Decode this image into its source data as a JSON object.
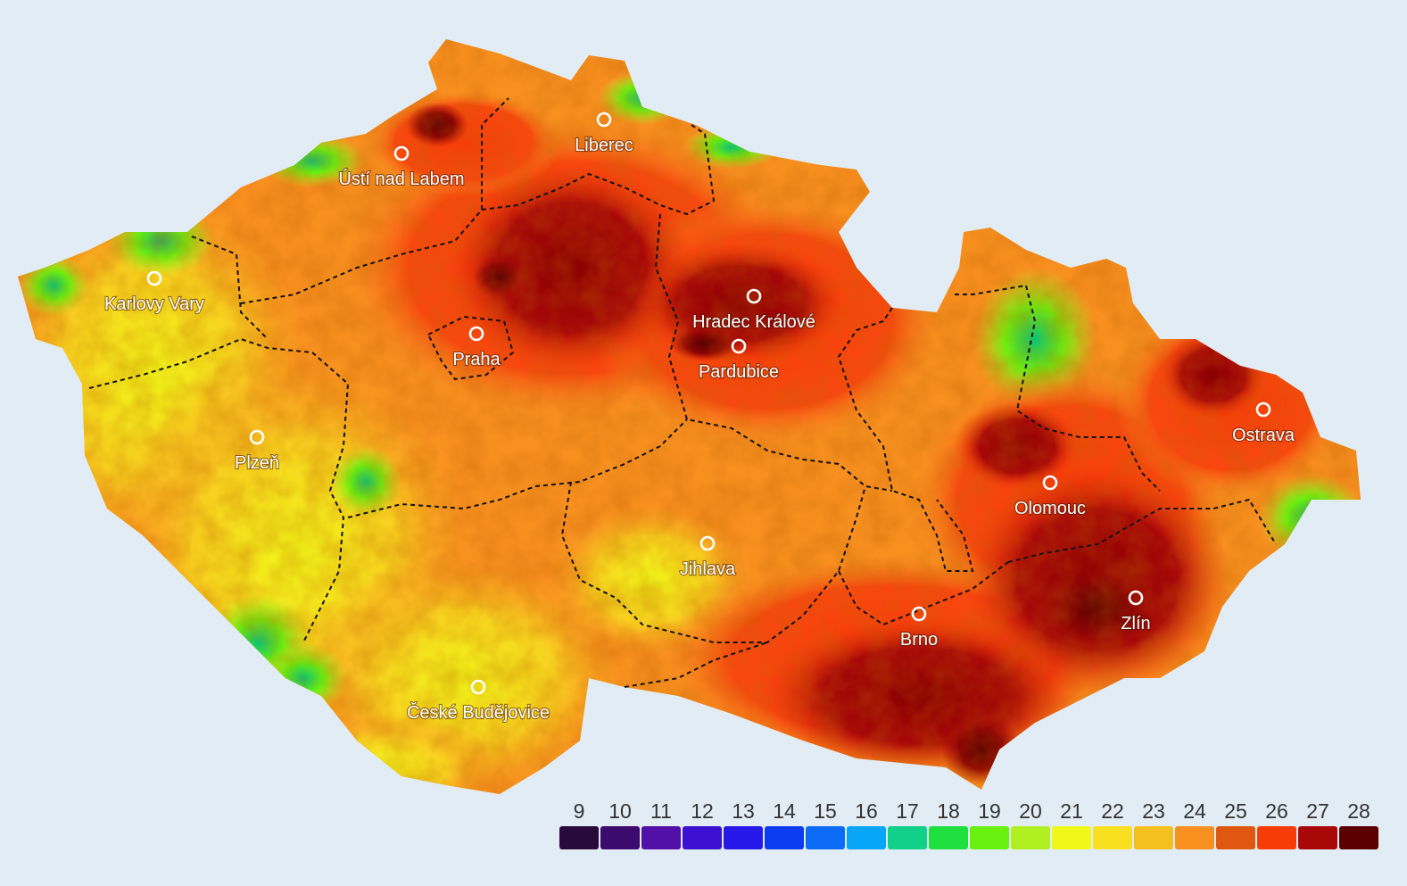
{
  "map": {
    "cities": [
      {
        "id": "liberec",
        "name": "Liberec"
      },
      {
        "id": "usti",
        "name": "Ústí nad Labem"
      },
      {
        "id": "karlovy-vary",
        "name": "Karlovy Vary"
      },
      {
        "id": "hradec",
        "name": "Hradec Králové"
      },
      {
        "id": "pardubice",
        "name": "Pardubice"
      },
      {
        "id": "praha",
        "name": "Praha"
      },
      {
        "id": "plzen",
        "name": "Plzeň"
      },
      {
        "id": "ostrava",
        "name": "Ostrava"
      },
      {
        "id": "olomouc",
        "name": "Olomouc"
      },
      {
        "id": "jihlava",
        "name": "Jihlava"
      },
      {
        "id": "zlin",
        "name": "Zlín"
      },
      {
        "id": "brno",
        "name": "Brno"
      },
      {
        "id": "ceske-budejovice",
        "name": "České Budějovice"
      }
    ]
  },
  "legend": {
    "items": [
      {
        "label": "9",
        "color": "#2a0a3a"
      },
      {
        "label": "10",
        "color": "#3d0a6e"
      },
      {
        "label": "11",
        "color": "#5310a8"
      },
      {
        "label": "12",
        "color": "#3c10d0"
      },
      {
        "label": "13",
        "color": "#2618e8"
      },
      {
        "label": "14",
        "color": "#0c3cf0"
      },
      {
        "label": "15",
        "color": "#0c6cf8"
      },
      {
        "label": "16",
        "color": "#08a6f8"
      },
      {
        "label": "17",
        "color": "#10d08a"
      },
      {
        "label": "18",
        "color": "#20e040"
      },
      {
        "label": "19",
        "color": "#68f010"
      },
      {
        "label": "20",
        "color": "#b0f020"
      },
      {
        "label": "21",
        "color": "#f0f818"
      },
      {
        "label": "22",
        "color": "#f8e020"
      },
      {
        "label": "23",
        "color": "#f4c020"
      },
      {
        "label": "24",
        "color": "#f89020"
      },
      {
        "label": "25",
        "color": "#e05810"
      },
      {
        "label": "26",
        "color": "#f83c08"
      },
      {
        "label": "27",
        "color": "#a80808"
      },
      {
        "label": "28",
        "color": "#5a0000"
      }
    ]
  }
}
